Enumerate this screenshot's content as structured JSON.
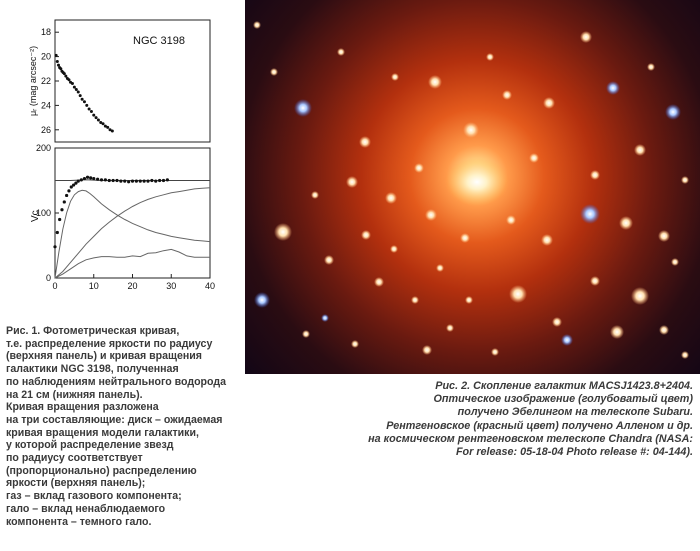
{
  "chart_data": [
    {
      "type": "scatter",
      "title": "NGC 3198",
      "ylabel": "μᵣ (mag arcsec⁻²)",
      "ylim": [
        27,
        17
      ],
      "xlim": [
        0,
        40
      ],
      "yticks": [
        18,
        20,
        22,
        24,
        26
      ],
      "x": [
        0.3,
        0.6,
        0.9,
        1.2,
        1.5,
        1.8,
        2.1,
        2.4,
        2.8,
        3.2,
        3.6,
        4.0,
        4.5,
        5.0,
        5.5,
        6.0,
        6.5,
        7.0,
        7.6,
        8.2,
        8.8,
        9.4,
        10.0,
        10.6,
        11.2,
        11.8,
        12.4,
        13.0,
        13.6,
        14.2,
        14.8
      ],
      "values": [
        19.9,
        20.4,
        20.7,
        20.9,
        21.0,
        21.2,
        21.3,
        21.4,
        21.6,
        21.8,
        21.9,
        22.1,
        22.2,
        22.5,
        22.7,
        22.9,
        23.2,
        23.5,
        23.7,
        24.0,
        24.3,
        24.5,
        24.8,
        25.0,
        25.2,
        25.4,
        25.5,
        25.7,
        25.8,
        26.0,
        26.1
      ]
    },
    {
      "type": "line",
      "ylabel": "Vc",
      "xlim": [
        0,
        40
      ],
      "ylim": [
        0,
        200
      ],
      "xticks": [
        0,
        10,
        20,
        30,
        40
      ],
      "yticks": [
        0,
        100,
        200
      ],
      "observed": {
        "x": [
          0,
          0.6,
          1.2,
          1.8,
          2.4,
          3.0,
          3.6,
          4.2,
          4.8,
          5.4,
          6.0,
          6.8,
          7.6,
          8.4,
          9.2,
          10.0,
          11.0,
          12.0,
          13.0,
          14.0,
          15.0,
          16.0,
          17.0,
          18.0,
          19.0,
          20.0,
          21.0,
          22.0,
          23.0,
          24.0,
          25.0,
          26.0,
          27.0,
          28.0,
          29.0
        ],
        "values": [
          48,
          70,
          90,
          105,
          117,
          127,
          134,
          140,
          143,
          146,
          149,
          151,
          153,
          155,
          154,
          153,
          152,
          151,
          151,
          150,
          150,
          150,
          149,
          149,
          148,
          149,
          149,
          149,
          149,
          149,
          150,
          149,
          150,
          150,
          151
        ]
      },
      "series": [
        {
          "x": [
            0,
            4,
            8,
            12,
            16,
            20,
            24,
            28,
            32,
            36,
            40
          ],
          "values": [
            150,
            150,
            151,
            150,
            150,
            150,
            150,
            150,
            150,
            150,
            150
          ]
        },
        {
          "x": [
            0,
            1,
            2,
            3,
            4,
            5,
            6,
            7,
            8,
            9,
            10,
            12,
            14,
            16,
            18,
            20,
            22,
            24,
            26,
            28,
            30,
            32,
            34,
            36,
            38,
            40
          ],
          "values": [
            0,
            40,
            75,
            100,
            118,
            128,
            133,
            135,
            134,
            130,
            125,
            114,
            105,
            97,
            90,
            84,
            79,
            74,
            70,
            67,
            64,
            62,
            60,
            58,
            57,
            56
          ]
        },
        {
          "x": [
            0,
            2,
            4,
            6,
            8,
            10,
            12,
            14,
            16,
            18,
            20,
            22,
            24,
            26,
            28,
            30,
            32,
            34,
            36,
            38,
            40
          ],
          "values": [
            0,
            10,
            24,
            38,
            52,
            64,
            76,
            86,
            95,
            103,
            110,
            116,
            121,
            125,
            128,
            131,
            133,
            135,
            137,
            138,
            139
          ]
        },
        {
          "x": [
            0,
            2,
            4,
            6,
            8,
            10,
            12,
            14,
            16,
            18,
            20,
            22,
            24,
            26,
            28,
            30,
            32,
            34,
            36,
            38,
            40
          ],
          "values": [
            0,
            6,
            14,
            22,
            28,
            31,
            33,
            33,
            32,
            32,
            34,
            33,
            38,
            39,
            42,
            44,
            40,
            34,
            32,
            32,
            32
          ]
        }
      ]
    }
  ],
  "captions": {
    "left": "Рис. 1. Фотометрическая кривая,\nт.е. распределение яркости по радиусу\n(верхняя панель) и кривая вращения\nгалактики NGC 3198, полученная\nпо наблюдениям нейтрального водорода\nна 21 см (нижняя панель).\nКривая вращения разложена\nна три составляющие: диск – ожидаемая\nкривая вращения модели галактики,\nу которой распределение звезд\nпо радиусу соответствует\n(пропорционально) распределению\nяркости (верхняя панель);\nгаз – вклад газового компонента;\nгало – вклад ненаблюдаемого\nкомпонента – темного гало.",
    "right": "Рис. 2. Скопление галактик MACSJ1423.8+2404.\nОптическое изображение (голубоватый цвет)\nполучено Эбелингом на телескопе Subaru.\nРентгеновское (красный цвет) получено Алленом и др.\nна космическом рентгеновском телескопе Chandra (NASA:\nFor release: 05-18-04 Photo release #: 04-144)."
  },
  "colors": {
    "core": "#fff7d6",
    "xray_glow": "#e45a1c",
    "background_space": "#120616",
    "blue_galaxies": "#7fb0ff"
  }
}
